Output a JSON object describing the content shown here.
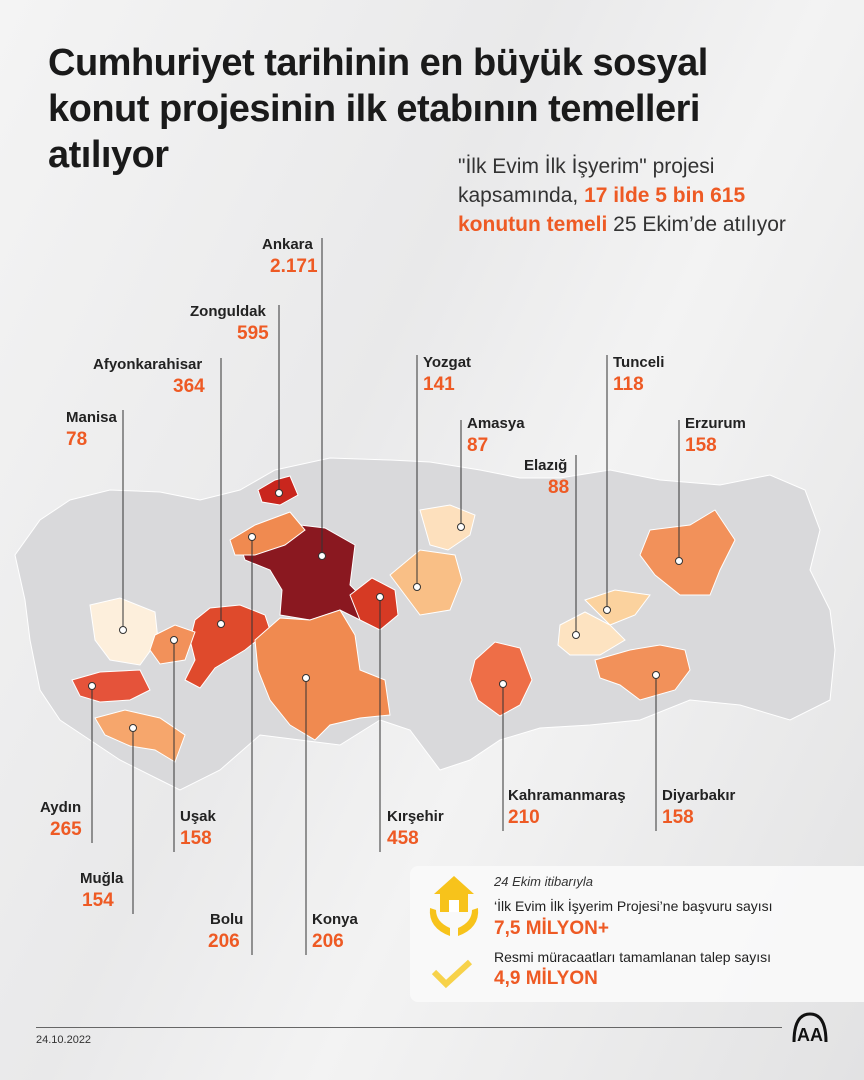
{
  "title": "Cumhuriyet tarihinin en büyük sosyal konut projesinin ilk etabının temelleri atılıyor",
  "subtitle": {
    "pre": "\"İlk Evim İlk İşyerim\" projesi kapsamında, ",
    "highlight": "17 ilde 5 bin 615 konutun temeli",
    "post": " 25 Ekim’de atılıyor"
  },
  "provinces": [
    {
      "name": "Ankara",
      "value": "2.171",
      "color": "#8a1820"
    },
    {
      "name": "Zonguldak",
      "value": "595",
      "color": "#c9261d"
    },
    {
      "name": "Afyonkarahisar",
      "value": "364",
      "color": "#df4a2c"
    },
    {
      "name": "Manisa",
      "value": "78",
      "color": "#fdefdc"
    },
    {
      "name": "Yozgat",
      "value": "141",
      "color": "#f9bf86"
    },
    {
      "name": "Amasya",
      "value": "87",
      "color": "#fde0bd"
    },
    {
      "name": "Tunceli",
      "value": "118",
      "color": "#fbd29e"
    },
    {
      "name": "Erzurum",
      "value": "158",
      "color": "#f2915a"
    },
    {
      "name": "Elazığ",
      "value": "88",
      "color": "#fde3c1"
    },
    {
      "name": "Aydın",
      "value": "265",
      "color": "#e5533a"
    },
    {
      "name": "Muğla",
      "value": "154",
      "color": "#f6a66c"
    },
    {
      "name": "Uşak",
      "value": "158",
      "color": "#f2915a"
    },
    {
      "name": "Bolu",
      "value": "206",
      "color": "#f08a50"
    },
    {
      "name": "Konya",
      "value": "206",
      "color": "#f08a50"
    },
    {
      "name": "Kırşehir",
      "value": "458",
      "color": "#d63a24"
    },
    {
      "name": "Kahramanmaraş",
      "value": "210",
      "color": "#ee6e47"
    },
    {
      "name": "Diyarbakır",
      "value": "158",
      "color": "#f2915a"
    }
  ],
  "info": {
    "date_note": "24 Ekim itibarıyla",
    "applications_label": "‘İlk Evim İlk İşyerim Projesi’ne başvuru sayısı",
    "applications_value": "7,5 MİLYON+",
    "completed_label": "Resmi müracaatları tamamlanan talep sayısı",
    "completed_value": "4,9 MİLYON",
    "accent": "#ee5a24",
    "icon_color": "#f7c31b"
  },
  "footer": {
    "date": "24.10.2022",
    "logo": "AA"
  }
}
